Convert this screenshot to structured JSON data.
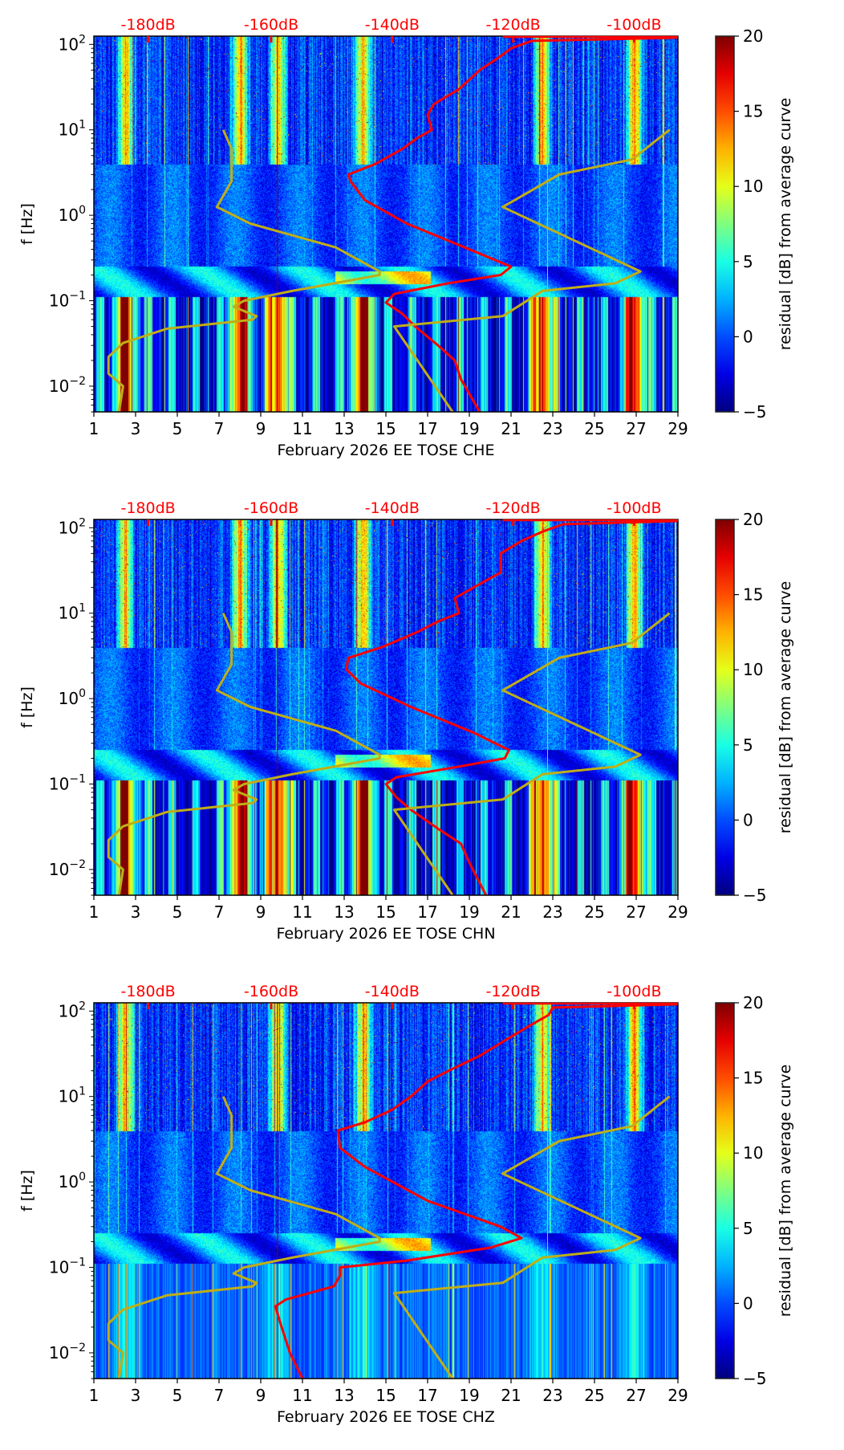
{
  "figure": {
    "colormap": "jet",
    "curve_colors": {
      "noise_model": "#ff0000",
      "reference": "#bfae17"
    }
  },
  "chart_data": [
    {
      "type": "heatmap",
      "channel": "CHE",
      "title": "",
      "xlabel": "February 2026 EE TOSE  CHE",
      "ylabel": "f [Hz]",
      "xlim": [
        1,
        29
      ],
      "ylim": [
        0.005,
        125
      ],
      "yscale": "log",
      "xticks": [
        "1",
        "3",
        "5",
        "7",
        "9",
        "11",
        "13",
        "15",
        "17",
        "19",
        "21",
        "23",
        "25",
        "27",
        "29"
      ],
      "yticks": [
        {
          "base": "10",
          "exp": "2"
        },
        {
          "base": "10",
          "exp": "1"
        },
        {
          "base": "10",
          "exp": "0"
        },
        {
          "base": "10",
          "exp": "−1"
        },
        {
          "base": "10",
          "exp": "−2"
        }
      ],
      "top_db_labels": [
        "-180dB",
        "-160dB",
        "-140dB",
        "-120dB",
        "-100dB"
      ],
      "colorbar": {
        "label": "residual [dB] from average curve",
        "min": -5,
        "max": 20,
        "ticks": [
          "20",
          "15",
          "10",
          "5",
          "0",
          "−5"
        ]
      },
      "high_residual_days": [
        2.5,
        8.0,
        9.8,
        13.9,
        22.5,
        26.9
      ],
      "series": [
        {
          "name": "noise_model_curve",
          "color": "#ff0000",
          "points": [
            [
              19.5,
              0.005
            ],
            [
              18.6,
              0.012
            ],
            [
              18.3,
              0.02
            ],
            [
              17.5,
              0.03
            ],
            [
              16.4,
              0.05
            ],
            [
              15.8,
              0.07
            ],
            [
              15.0,
              0.095
            ],
            [
              15.4,
              0.12
            ],
            [
              18.0,
              0.16
            ],
            [
              20.5,
              0.2
            ],
            [
              21.0,
              0.25
            ],
            [
              19.0,
              0.4
            ],
            [
              16.0,
              0.8
            ],
            [
              14.0,
              1.5
            ],
            [
              13.3,
              2.5
            ],
            [
              13.2,
              3.0
            ],
            [
              14.5,
              4.0
            ],
            [
              15.8,
              6.0
            ],
            [
              16.5,
              8.0
            ],
            [
              17.2,
              10
            ],
            [
              17.0,
              15
            ],
            [
              17.3,
              20
            ],
            [
              18.5,
              30
            ],
            [
              19.5,
              50
            ],
            [
              20.4,
              70
            ],
            [
              21.0,
              90
            ],
            [
              22.0,
              110
            ],
            [
              29,
              120
            ]
          ]
        },
        {
          "name": "reference_curve",
          "color": "#bfae17",
          "points": [
            [
              7.2,
              10
            ],
            [
              7.6,
              6
            ],
            [
              7.6,
              2.5
            ],
            [
              6.9,
              1.25
            ],
            [
              8.5,
              0.8
            ],
            [
              12.6,
              0.42
            ],
            [
              14.7,
              0.22
            ],
            [
              14.7,
              0.2
            ],
            [
              10.5,
              0.13
            ],
            [
              8.2,
              0.1
            ],
            [
              7.7,
              0.085
            ],
            [
              8.8,
              0.066
            ],
            [
              8.6,
              0.06
            ],
            [
              4.5,
              0.047
            ],
            [
              2.4,
              0.032
            ],
            [
              1.7,
              0.022
            ],
            [
              1.7,
              0.014
            ],
            [
              2.4,
              0.01
            ],
            [
              2.3,
              0.007
            ],
            [
              2.2,
              0.005
            ]
          ]
        },
        {
          "name": "reference_curve_b",
          "color": "#bfae17",
          "points": [
            [
              28.6,
              10
            ],
            [
              26.8,
              4.5
            ],
            [
              23.3,
              3.0
            ],
            [
              20.6,
              1.25
            ],
            [
              27.2,
              0.22
            ],
            [
              26.0,
              0.16
            ],
            [
              22.5,
              0.13
            ],
            [
              20.6,
              0.066
            ],
            [
              15.4,
              0.05
            ],
            [
              18.2,
              0.005
            ]
          ]
        }
      ]
    },
    {
      "type": "heatmap",
      "channel": "CHN",
      "title": "",
      "xlabel": "February 2026 EE TOSE  CHN",
      "ylabel": "f [Hz]",
      "xlim": [
        1,
        29
      ],
      "ylim": [
        0.005,
        125
      ],
      "yscale": "log",
      "xticks": [
        "1",
        "3",
        "5",
        "7",
        "9",
        "11",
        "13",
        "15",
        "17",
        "19",
        "21",
        "23",
        "25",
        "27",
        "29"
      ],
      "yticks": [
        {
          "base": "10",
          "exp": "2"
        },
        {
          "base": "10",
          "exp": "1"
        },
        {
          "base": "10",
          "exp": "0"
        },
        {
          "base": "10",
          "exp": "−1"
        },
        {
          "base": "10",
          "exp": "−2"
        }
      ],
      "top_db_labels": [
        "-180dB",
        "-160dB",
        "-140dB",
        "-120dB",
        "-100dB"
      ],
      "colorbar": {
        "label": "residual [dB] from average curve",
        "min": -5,
        "max": 20,
        "ticks": [
          "20",
          "15",
          "10",
          "5",
          "0",
          "−5"
        ]
      },
      "high_residual_days": [
        2.5,
        8.0,
        9.8,
        13.9,
        22.5,
        26.9
      ],
      "series": [
        {
          "name": "noise_model_curve",
          "color": "#ff0000",
          "points": [
            [
              19.8,
              0.005
            ],
            [
              19.0,
              0.012
            ],
            [
              18.6,
              0.02
            ],
            [
              17.5,
              0.03
            ],
            [
              16.2,
              0.05
            ],
            [
              15.5,
              0.07
            ],
            [
              15.0,
              0.1
            ],
            [
              15.5,
              0.12
            ],
            [
              18.5,
              0.16
            ],
            [
              20.7,
              0.2
            ],
            [
              20.9,
              0.25
            ],
            [
              19.2,
              0.4
            ],
            [
              16.2,
              0.8
            ],
            [
              13.8,
              1.5
            ],
            [
              13.1,
              2.2
            ],
            [
              13.2,
              3.0
            ],
            [
              14.8,
              4.0
            ],
            [
              16.5,
              6.0
            ],
            [
              17.5,
              8.0
            ],
            [
              18.5,
              10
            ],
            [
              18.3,
              15
            ],
            [
              19.2,
              20
            ],
            [
              20.5,
              30
            ],
            [
              20.5,
              50
            ],
            [
              21.5,
              70
            ],
            [
              22.5,
              90
            ],
            [
              23.5,
              110
            ],
            [
              29,
              120
            ]
          ]
        },
        {
          "name": "reference_curve",
          "color": "#bfae17",
          "points": [
            [
              7.2,
              10
            ],
            [
              7.6,
              6
            ],
            [
              7.6,
              2.5
            ],
            [
              6.9,
              1.25
            ],
            [
              8.5,
              0.8
            ],
            [
              12.6,
              0.42
            ],
            [
              14.7,
              0.22
            ],
            [
              14.7,
              0.2
            ],
            [
              10.5,
              0.13
            ],
            [
              8.2,
              0.1
            ],
            [
              7.7,
              0.085
            ],
            [
              8.8,
              0.066
            ],
            [
              8.6,
              0.06
            ],
            [
              4.5,
              0.047
            ],
            [
              2.4,
              0.032
            ],
            [
              1.7,
              0.022
            ],
            [
              1.7,
              0.014
            ],
            [
              2.4,
              0.01
            ],
            [
              2.3,
              0.007
            ],
            [
              2.2,
              0.005
            ]
          ]
        },
        {
          "name": "reference_curve_b",
          "color": "#bfae17",
          "points": [
            [
              28.6,
              10
            ],
            [
              26.8,
              4.5
            ],
            [
              23.3,
              3.0
            ],
            [
              20.6,
              1.25
            ],
            [
              27.2,
              0.22
            ],
            [
              26.0,
              0.16
            ],
            [
              22.5,
              0.13
            ],
            [
              20.6,
              0.066
            ],
            [
              15.4,
              0.05
            ],
            [
              18.2,
              0.005
            ]
          ]
        }
      ]
    },
    {
      "type": "heatmap",
      "channel": "CHZ",
      "title": "",
      "xlabel": "February 2026 EE TOSE  CHZ",
      "ylabel": "f [Hz]",
      "xlim": [
        1,
        29
      ],
      "ylim": [
        0.005,
        125
      ],
      "yscale": "log",
      "xticks": [
        "1",
        "3",
        "5",
        "7",
        "9",
        "11",
        "13",
        "15",
        "17",
        "19",
        "21",
        "23",
        "25",
        "27",
        "29"
      ],
      "yticks": [
        {
          "base": "10",
          "exp": "2"
        },
        {
          "base": "10",
          "exp": "1"
        },
        {
          "base": "10",
          "exp": "0"
        },
        {
          "base": "10",
          "exp": "−1"
        },
        {
          "base": "10",
          "exp": "−2"
        }
      ],
      "top_db_labels": [
        "-180dB",
        "-160dB",
        "-140dB",
        "-120dB",
        "-100dB"
      ],
      "colorbar": {
        "label": "residual [dB] from average curve",
        "min": -5,
        "max": 20,
        "ticks": [
          "20",
          "15",
          "10",
          "5",
          "0",
          "−5"
        ]
      },
      "high_residual_days": [
        2.5,
        9.8,
        13.9,
        22.5,
        26.9
      ],
      "series": [
        {
          "name": "noise_model_curve",
          "color": "#ff0000",
          "points": [
            [
              11.0,
              0.005
            ],
            [
              10.4,
              0.01
            ],
            [
              10.0,
              0.02
            ],
            [
              9.7,
              0.035
            ],
            [
              10.2,
              0.042
            ],
            [
              12.5,
              0.06
            ],
            [
              12.8,
              0.08
            ],
            [
              12.8,
              0.1
            ],
            [
              16.0,
              0.12
            ],
            [
              20.0,
              0.17
            ],
            [
              21.5,
              0.22
            ],
            [
              20.5,
              0.3
            ],
            [
              17.0,
              0.6
            ],
            [
              14.0,
              1.5
            ],
            [
              12.8,
              2.5
            ],
            [
              12.7,
              4.0
            ],
            [
              14.0,
              5.0
            ],
            [
              15.3,
              7.0
            ],
            [
              16.2,
              10
            ],
            [
              17.0,
              15
            ],
            [
              18.0,
              20
            ],
            [
              19.5,
              30
            ],
            [
              21.0,
              50
            ],
            [
              22.0,
              70
            ],
            [
              22.8,
              90
            ],
            [
              23.0,
              110
            ],
            [
              29,
              120
            ]
          ]
        },
        {
          "name": "reference_curve",
          "color": "#bfae17",
          "points": [
            [
              7.2,
              10
            ],
            [
              7.6,
              6
            ],
            [
              7.6,
              2.5
            ],
            [
              6.9,
              1.25
            ],
            [
              8.5,
              0.8
            ],
            [
              12.6,
              0.42
            ],
            [
              14.7,
              0.22
            ],
            [
              14.7,
              0.2
            ],
            [
              10.5,
              0.13
            ],
            [
              8.2,
              0.1
            ],
            [
              7.7,
              0.085
            ],
            [
              8.8,
              0.066
            ],
            [
              8.6,
              0.06
            ],
            [
              4.5,
              0.047
            ],
            [
              2.4,
              0.032
            ],
            [
              1.7,
              0.022
            ],
            [
              1.7,
              0.014
            ],
            [
              2.4,
              0.01
            ],
            [
              2.3,
              0.007
            ],
            [
              2.2,
              0.005
            ]
          ]
        },
        {
          "name": "reference_curve_b",
          "color": "#bfae17",
          "points": [
            [
              28.6,
              10
            ],
            [
              26.8,
              4.5
            ],
            [
              23.3,
              3.0
            ],
            [
              20.6,
              1.25
            ],
            [
              27.2,
              0.22
            ],
            [
              26.0,
              0.16
            ],
            [
              22.5,
              0.13
            ],
            [
              20.6,
              0.066
            ],
            [
              15.4,
              0.05
            ],
            [
              18.2,
              0.005
            ]
          ]
        }
      ]
    }
  ]
}
